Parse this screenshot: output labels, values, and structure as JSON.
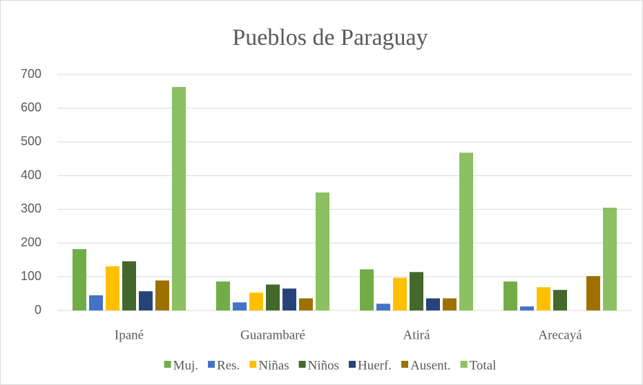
{
  "chart_data": {
    "type": "bar",
    "title": "Pueblos de Paraguay",
    "categories": [
      "Ipané",
      "Guarambaré",
      "Atirá",
      "Arecayá"
    ],
    "series": [
      {
        "name": "Muj.",
        "color": "#70ad47",
        "values": [
          182,
          86,
          122,
          86
        ]
      },
      {
        "name": "Res.",
        "color": "#4472c4",
        "values": [
          45,
          24,
          20,
          12
        ]
      },
      {
        "name": "Niñas",
        "color": "#ffc000",
        "values": [
          131,
          53,
          97,
          69
        ]
      },
      {
        "name": "Niños",
        "color": "#43682b",
        "values": [
          146,
          77,
          114,
          61
        ]
      },
      {
        "name": "Huerf.",
        "color": "#264478",
        "values": [
          57,
          65,
          36,
          0
        ]
      },
      {
        "name": "Ausent.",
        "color": "#9e7000",
        "values": [
          89,
          36,
          36,
          102
        ]
      },
      {
        "name": "Total",
        "color": "#8cc063",
        "values": [
          663,
          350,
          468,
          305
        ]
      }
    ],
    "ylim": [
      0,
      700
    ],
    "yticks": [
      0,
      100,
      200,
      300,
      400,
      500,
      600,
      700
    ],
    "grid": true,
    "legend": "bottom"
  }
}
